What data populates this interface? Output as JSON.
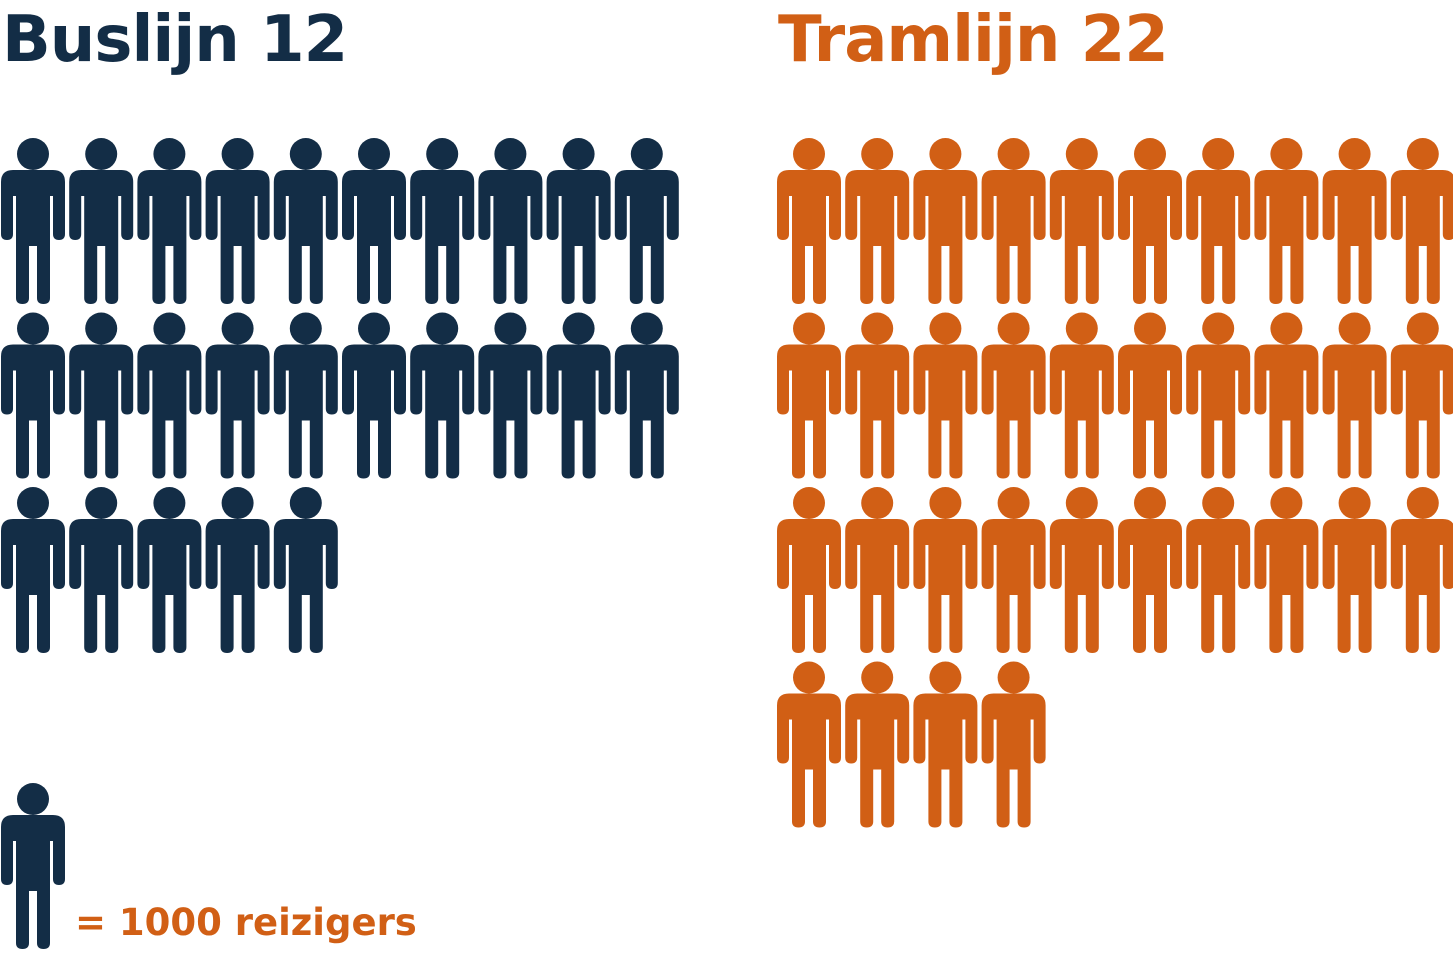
{
  "chart_data": [
    {
      "type": "pictogram",
      "title": "Buslijn 12",
      "value": 25,
      "color": "#132d46"
    },
    {
      "type": "pictogram",
      "title": "Tramlijn 22",
      "value": 34,
      "color": "#d15f15"
    }
  ],
  "legend": {
    "text": "= 1000 reizigers",
    "icon_color": "#132d46",
    "text_color": "#d15f15",
    "icon": "person-icon"
  }
}
